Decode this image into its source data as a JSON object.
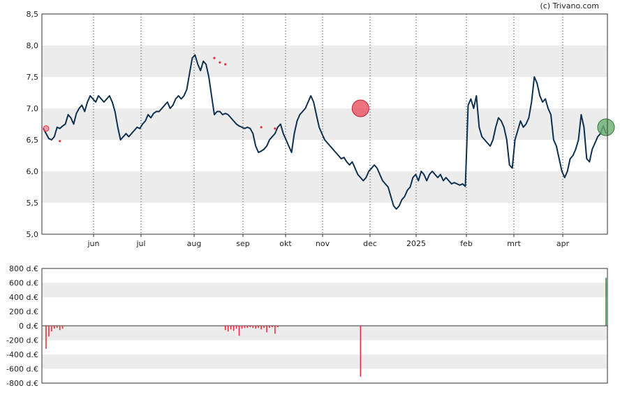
{
  "credit": "(c) Trivano.com",
  "colors": {
    "price_line": "#0d3050",
    "band": "#ececec",
    "sell": "#e8303f",
    "buy": "#2e8b3a",
    "sell_circle": "#e85060",
    "buy_circle": "#6aae6e"
  },
  "chart_data": [
    {
      "type": "line",
      "ylim": [
        5.0,
        8.5
      ],
      "y_ticks": [
        "8,5",
        "8,0",
        "7,5",
        "7,0",
        "6,5",
        "6,0",
        "5,5",
        "5,0"
      ],
      "x_ticks": [
        "jun",
        "jul",
        "aug",
        "sep",
        "okt",
        "nov",
        "dec",
        "2025",
        "feb",
        "mrt",
        "apr"
      ],
      "grid": "shaded horizontal bands, dotted vertical lines at month starts",
      "series": [
        {
          "values": [
            6.68,
            6.6,
            6.52,
            6.5,
            6.55,
            6.7,
            6.68,
            6.72,
            6.75,
            6.9,
            6.85,
            6.75,
            6.92,
            7.0,
            7.05,
            6.95,
            7.1,
            7.2,
            7.15,
            7.1,
            7.2,
            7.15,
            7.1,
            7.15,
            7.2,
            7.1,
            6.95,
            6.7,
            6.5,
            6.55,
            6.6,
            6.55,
            6.6,
            6.65,
            6.7,
            6.68,
            6.75,
            6.8,
            6.9,
            6.85,
            6.92,
            6.95,
            6.95,
            7.0,
            7.05,
            7.1,
            7.0,
            7.05,
            7.15,
            7.2,
            7.15,
            7.2,
            7.3,
            7.55,
            7.8,
            7.85,
            7.7,
            7.6,
            7.75,
            7.7,
            7.5,
            7.2,
            6.9,
            6.95,
            6.95,
            6.9,
            6.92,
            6.9,
            6.85,
            6.8,
            6.75,
            6.72,
            6.7,
            6.68,
            6.7,
            6.68,
            6.6,
            6.4,
            6.3,
            6.32,
            6.35,
            6.4,
            6.5,
            6.55,
            6.6,
            6.7,
            6.75,
            6.6,
            6.5,
            6.4,
            6.3,
            6.6,
            6.8,
            6.9,
            6.95,
            7.0,
            7.1,
            7.2,
            7.1,
            6.9,
            6.7,
            6.6,
            6.5,
            6.45,
            6.4,
            6.35,
            6.3,
            6.25,
            6.2,
            6.22,
            6.15,
            6.1,
            6.15,
            6.05,
            5.95,
            5.9,
            5.85,
            5.9,
            6.0,
            6.05,
            6.1,
            6.05,
            5.95,
            5.85,
            5.8,
            5.75,
            5.6,
            5.45,
            5.4,
            5.45,
            5.55,
            5.6,
            5.7,
            5.75,
            5.9,
            5.95,
            5.85,
            6.0,
            5.95,
            5.85,
            5.95,
            6.0,
            5.95,
            5.9,
            5.95,
            5.85,
            5.9,
            5.85,
            5.8,
            5.82,
            5.8,
            5.78,
            5.8,
            5.76,
            7.05,
            7.15,
            7.0,
            7.2,
            6.7,
            6.55,
            6.5,
            6.45,
            6.4,
            6.5,
            6.7,
            6.85,
            6.8,
            6.7,
            6.5,
            6.1,
            6.05,
            6.5,
            6.65,
            6.8,
            6.7,
            6.75,
            6.85,
            7.1,
            7.5,
            7.4,
            7.2,
            7.1,
            7.15,
            7.0,
            6.9,
            6.5,
            6.4,
            6.2,
            6.0,
            5.9,
            6.0,
            6.2,
            6.25,
            6.35,
            6.5,
            6.9,
            6.7,
            6.2,
            6.15,
            6.35,
            6.45,
            6.55,
            6.6,
            6.72,
            6.6
          ]
        }
      ],
      "sell_markers": [
        {
          "i": 1,
          "value": 6.68
        },
        {
          "i": 6,
          "value": 6.48
        },
        {
          "i": 62,
          "value": 7.8
        },
        {
          "i": 64,
          "value": 7.73
        },
        {
          "i": 66,
          "value": 7.7
        },
        {
          "i": 79,
          "value": 6.7
        },
        {
          "i": 84,
          "value": 6.68
        }
      ],
      "big_markers": [
        {
          "i": 115,
          "value": 7.0,
          "kind": "sell"
        },
        {
          "i": 204,
          "value": 6.7,
          "kind": "buy"
        }
      ]
    },
    {
      "type": "bar",
      "ylim": [
        -800,
        800
      ],
      "y_ticks": [
        "800 d.€",
        "600 d.€",
        "400 d.€",
        "200 d.€",
        "0 d.€",
        "-200 d.€",
        "-400 d.€",
        "-600 d.€",
        "-800 d.€"
      ],
      "x_ticks": [
        "jun",
        "jul",
        "aug",
        "sep",
        "okt",
        "nov",
        "dec",
        "2025",
        "feb",
        "mrt",
        "apr"
      ],
      "bars": [
        {
          "i": 1,
          "value": -320
        },
        {
          "i": 2,
          "value": -150
        },
        {
          "i": 3,
          "value": -80
        },
        {
          "i": 4,
          "value": -40
        },
        {
          "i": 5,
          "value": -30
        },
        {
          "i": 6,
          "value": -60
        },
        {
          "i": 7,
          "value": -40
        },
        {
          "i": 66,
          "value": -60
        },
        {
          "i": 67,
          "value": -80
        },
        {
          "i": 68,
          "value": -50
        },
        {
          "i": 69,
          "value": -70
        },
        {
          "i": 70,
          "value": -40
        },
        {
          "i": 71,
          "value": -140
        },
        {
          "i": 72,
          "value": -40
        },
        {
          "i": 73,
          "value": -30
        },
        {
          "i": 74,
          "value": -30
        },
        {
          "i": 75,
          "value": -20
        },
        {
          "i": 76,
          "value": -30
        },
        {
          "i": 77,
          "value": -40
        },
        {
          "i": 78,
          "value": -30
        },
        {
          "i": 79,
          "value": -50
        },
        {
          "i": 80,
          "value": -30
        },
        {
          "i": 81,
          "value": -90
        },
        {
          "i": 82,
          "value": -30
        },
        {
          "i": 83,
          "value": -20
        },
        {
          "i": 84,
          "value": -110
        },
        {
          "i": 85,
          "value": -20
        },
        {
          "i": 115,
          "value": -710
        },
        {
          "i": 204,
          "value": 670
        }
      ]
    }
  ]
}
